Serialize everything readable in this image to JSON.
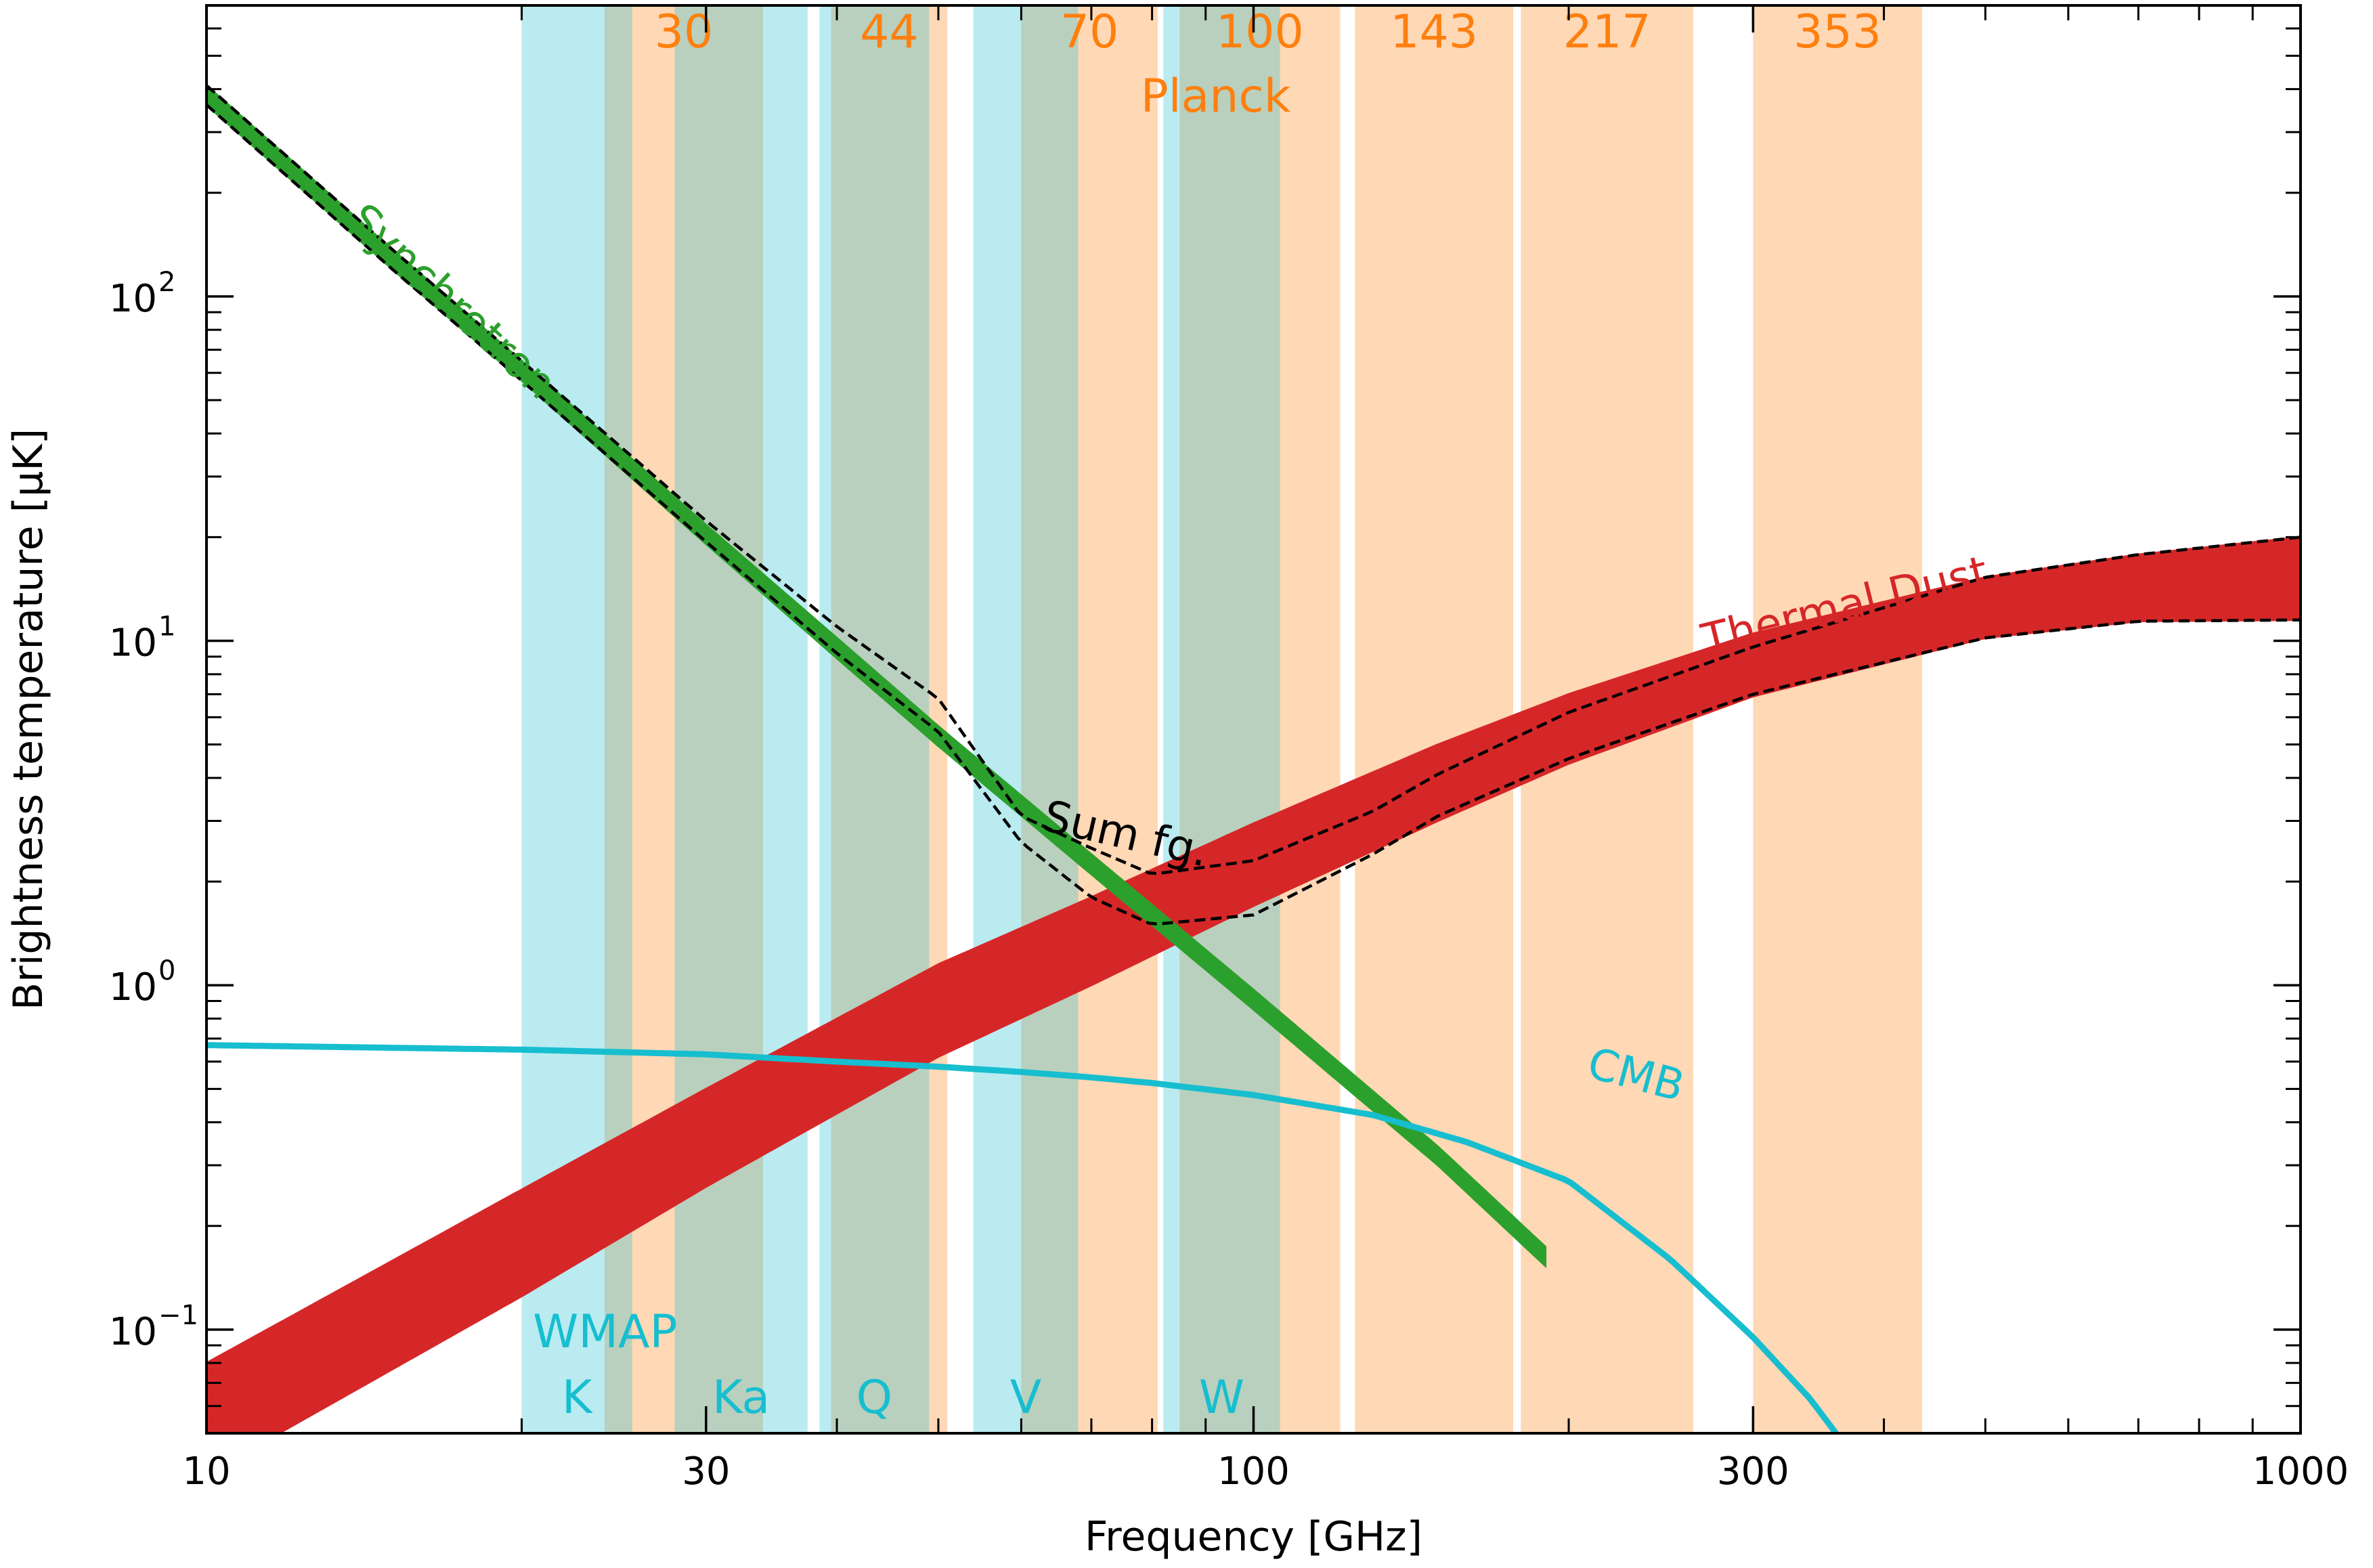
{
  "chart_data": {
    "type": "line",
    "title": "",
    "xlabel": "Frequency [GHz]",
    "ylabel": "Brightness temperature [μK]",
    "xscale": "log",
    "yscale": "log",
    "xlim": [
      10,
      1000
    ],
    "ylim": [
      0.05,
      700
    ],
    "grid": false,
    "x_ticks": [
      {
        "value": 10,
        "label": "10"
      },
      {
        "value": 30,
        "label": "30"
      },
      {
        "value": 100,
        "label": "100"
      },
      {
        "value": 300,
        "label": "300"
      },
      {
        "value": 1000,
        "label": "1000"
      }
    ],
    "y_ticks": [
      {
        "value": 0.1,
        "base": "10",
        "exp": "−1"
      },
      {
        "value": 1,
        "base": "10",
        "exp": "0"
      },
      {
        "value": 10,
        "base": "10",
        "exp": "1"
      },
      {
        "value": 100,
        "base": "10",
        "exp": "2"
      }
    ],
    "colors": {
      "wmap": "#17becf",
      "planck": "#ff7f0e",
      "synchrotron": "#2ca02c",
      "dust": "#d62728",
      "cmb": "#17becf",
      "sum": "#000000"
    },
    "wmap": {
      "name": "WMAP",
      "bands": [
        {
          "label": "K",
          "range": [
            20.0,
            25.5
          ]
        },
        {
          "label": "Ka",
          "range": [
            28.0,
            37.5
          ]
        },
        {
          "label": "Q",
          "range": [
            38.5,
            49.0
          ]
        },
        {
          "label": "V",
          "range": [
            54.0,
            68.0
          ]
        },
        {
          "label": "W",
          "range": [
            82.0,
            106.0
          ]
        }
      ]
    },
    "planck": {
      "name": "Planck",
      "bands": [
        {
          "label": "30",
          "range": [
            24.0,
            34.0
          ]
        },
        {
          "label": "44",
          "range": [
            39.5,
            51.0
          ]
        },
        {
          "label": "70",
          "range": [
            60.0,
            81.0
          ]
        },
        {
          "label": "100",
          "range": [
            85.0,
            121.0
          ]
        },
        {
          "label": "143",
          "range": [
            125.0,
            177.0
          ]
        },
        {
          "label": "217",
          "range": [
            180.0,
            263.0
          ]
        },
        {
          "label": "353",
          "range": [
            300.0,
            435.0
          ]
        }
      ]
    },
    "series": [
      {
        "name": "Synchrotron",
        "style": "band",
        "x": [
          10,
          15,
          20,
          30,
          40,
          50,
          70,
          100,
          150,
          190
        ],
        "y_low": [
          360,
          121,
          57,
          19.1,
          8.9,
          4.95,
          2.1,
          0.85,
          0.3,
          0.153
        ],
        "y_high": [
          410,
          138,
          65,
          21.7,
          10.2,
          5.65,
          2.4,
          0.97,
          0.34,
          0.174
        ]
      },
      {
        "name": "Thermal Dust",
        "style": "band",
        "x": [
          10,
          20,
          30,
          50,
          70,
          100,
          150,
          200,
          300,
          500,
          700,
          1000
        ],
        "y_low": [
          0.038,
          0.125,
          0.26,
          0.62,
          1.0,
          1.7,
          3.0,
          4.4,
          6.9,
          10.2,
          11.4,
          11.5
        ],
        "y_high": [
          0.08,
          0.255,
          0.5,
          1.15,
          1.8,
          2.95,
          5.0,
          7.0,
          10.5,
          15.3,
          17.8,
          20.0
        ]
      },
      {
        "name": "CMB",
        "style": "line",
        "x": [
          10,
          20,
          30,
          40,
          50,
          60,
          70,
          80,
          100,
          130,
          160,
          200,
          250,
          300,
          340,
          360
        ],
        "y": [
          0.67,
          0.65,
          0.63,
          0.6,
          0.58,
          0.56,
          0.54,
          0.52,
          0.48,
          0.42,
          0.35,
          0.27,
          0.16,
          0.095,
          0.063,
          0.05
        ]
      },
      {
        "name": "Sum fg.",
        "style": "dashed-band",
        "x": [
          10,
          15,
          20,
          30,
          40,
          50,
          60,
          70,
          80,
          100,
          130,
          150,
          200,
          300,
          500,
          700,
          1000
        ],
        "y_low": [
          360,
          121,
          57,
          19.4,
          9.2,
          5.45,
          2.6,
          1.8,
          1.5,
          1.6,
          2.4,
          3.1,
          4.55,
          7.0,
          10.2,
          11.4,
          11.5
        ],
        "y_high": [
          410,
          138,
          65,
          22.3,
          11.0,
          6.8,
          3.1,
          2.5,
          2.1,
          2.3,
          3.2,
          4.1,
          6.2,
          9.6,
          15.3,
          17.8,
          20.0
        ]
      }
    ],
    "annotations": [
      {
        "text": "Synchrotron",
        "color": "synchrotron",
        "at": [
          16.8,
          90
        ],
        "angle": 42.6
      },
      {
        "text": "Thermal Dust",
        "color": "dust",
        "at": [
          370,
          11.5
        ],
        "angle": -13.9
      },
      {
        "text": "CMB",
        "color": "cmb",
        "at": [
          230,
          0.5
        ],
        "angle": 14.9
      },
      {
        "text": "Sum fg.",
        "color": "sum",
        "at": [
          75,
          2.5
        ],
        "angle": 12.8
      }
    ]
  }
}
